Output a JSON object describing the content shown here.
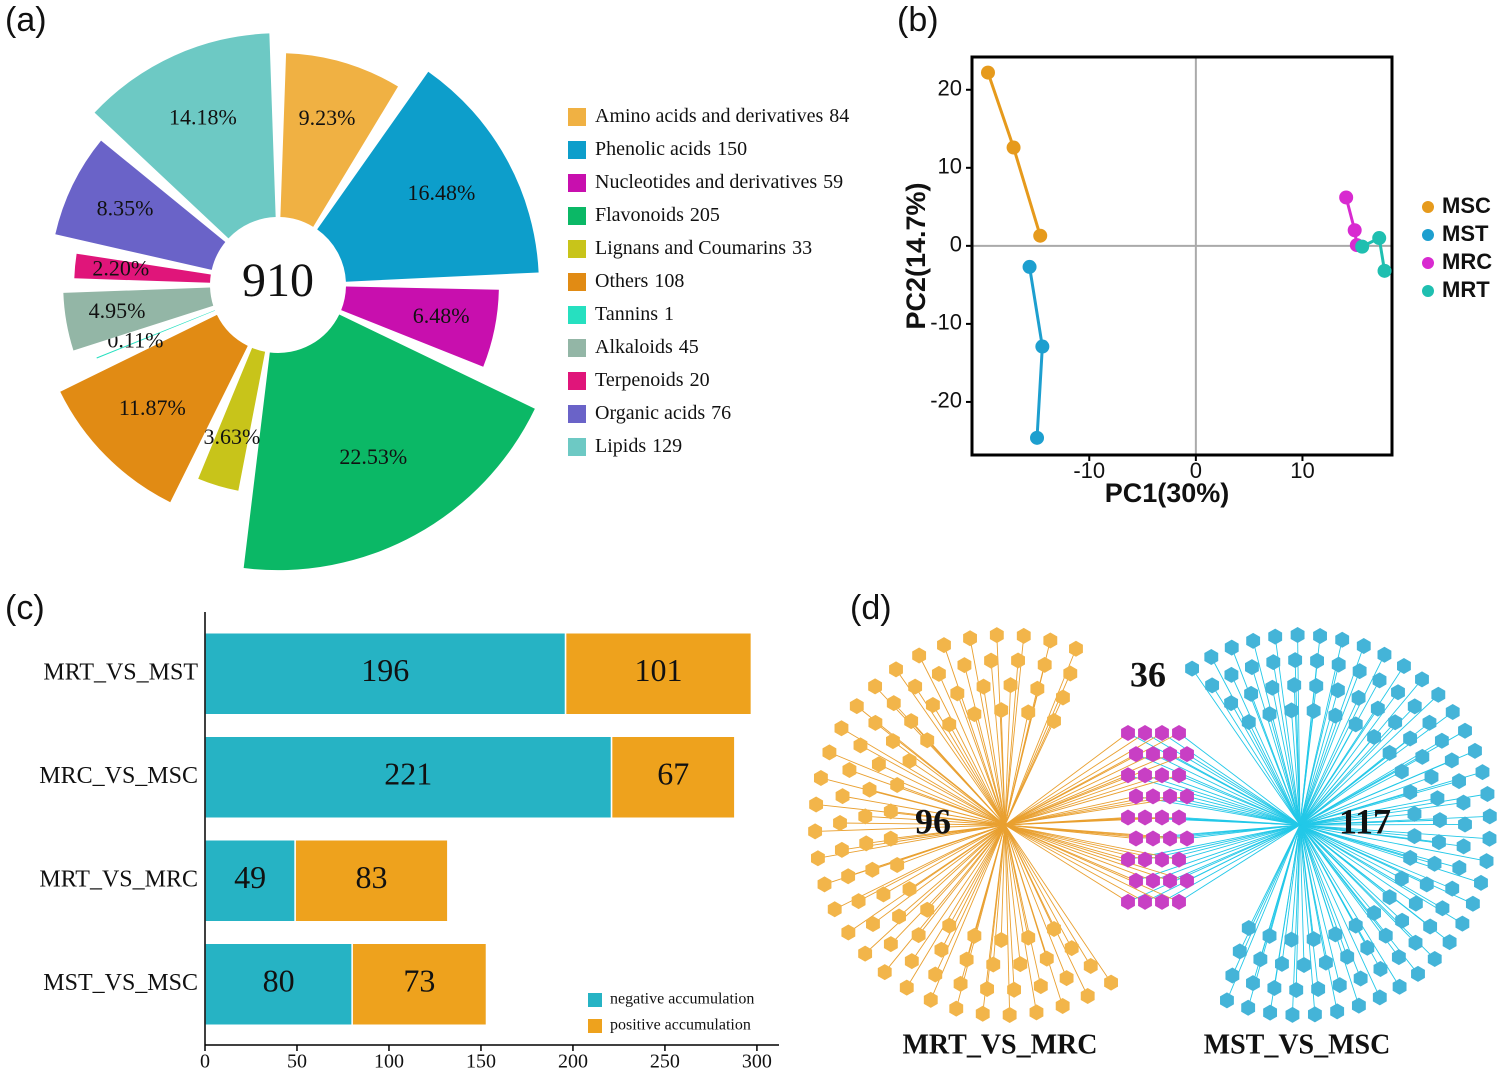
{
  "chart_data": [
    {
      "type": "pie",
      "label": "(a)",
      "total": 910,
      "categories": [
        "Amino acids and derivatives",
        "Phenolic acids",
        "Nucleotides and derivatives",
        "Flavonoids",
        "Lignans and Coumarins",
        "Others",
        "Tannins",
        "Alkaloids",
        "Terpenoids",
        "Organic acids",
        "Lipids"
      ],
      "counts": [
        84,
        150,
        59,
        205,
        33,
        108,
        1,
        45,
        20,
        76,
        129
      ],
      "values": [
        9.23,
        16.48,
        6.48,
        22.53,
        3.63,
        11.87,
        0.11,
        4.95,
        2.2,
        8.35,
        14.18
      ],
      "value_labels": [
        "9.23%",
        "16.48%",
        "6.48%",
        "22.53%",
        "3.63%",
        "11.87%",
        "0.11%",
        "4.95%",
        "2.20%",
        "8.35%",
        "14.18%"
      ],
      "colors": [
        "#f0b143",
        "#0d9ecb",
        "#c80fae",
        "#0bb866",
        "#c8c41a",
        "#e18b14",
        "#26e0c0",
        "#93b6a6",
        "#e0157a",
        "#6a63c8",
        "#6dc9c4"
      ],
      "legend": "right"
    },
    {
      "type": "scatter",
      "label": "(b)",
      "xlabel": "PC1(30%)",
      "ylabel": "PC2(14.7%)",
      "xlim": [
        -21,
        18.4
      ],
      "ylim": [
        -26.8,
        24.2
      ],
      "xticks": [
        -10,
        0,
        10
      ],
      "yticks": [
        -20,
        -10,
        0,
        10,
        20
      ],
      "zero_lines": true,
      "legend": "right",
      "series": [
        {
          "name": "MSC",
          "color": "#e69a1c",
          "x": [
            -19.5,
            -17.1,
            -14.6
          ],
          "y": [
            22.2,
            12.6,
            1.3
          ]
        },
        {
          "name": "MST",
          "color": "#1d9fcf",
          "x": [
            -15.6,
            -14.4,
            -14.9
          ],
          "y": [
            -2.7,
            -12.9,
            -24.6
          ]
        },
        {
          "name": "MRC",
          "color": "#d82ad0",
          "x": [
            14.1,
            14.9,
            15.1
          ],
          "y": [
            6.2,
            2.0,
            0.1
          ]
        },
        {
          "name": "MRT",
          "color": "#1fbfb0",
          "x": [
            15.6,
            17.2,
            17.7
          ],
          "y": [
            -0.1,
            1.0,
            -3.2
          ]
        }
      ]
    },
    {
      "type": "bar",
      "label": "(c)",
      "orientation": "horizontal",
      "stacked": true,
      "categories": [
        "MRT_VS_MST",
        "MRC_VS_MSC",
        "MRT_VS_MRC",
        "MST_VS_MSC"
      ],
      "xlim": [
        0,
        312
      ],
      "xticks": [
        0,
        50,
        100,
        150,
        200,
        250,
        300
      ],
      "legend": "lower right",
      "series": [
        {
          "name": "negative accumulation",
          "color": "#26b3c4",
          "values": [
            196,
            221,
            49,
            80
          ]
        },
        {
          "name": "positive accumulation",
          "color": "#eea21d",
          "values": [
            101,
            67,
            83,
            73
          ]
        }
      ]
    },
    {
      "type": "network",
      "label": "(d)",
      "groups": [
        {
          "name": "MRT_VS_MRC",
          "count": 96,
          "color": "#f2b54a",
          "edge_color": "#e9a030"
        },
        {
          "name": "MST_VS_MSC",
          "count": 117,
          "color": "#44b4d8",
          "edge_color": "#22c8e8"
        }
      ],
      "shared": {
        "count": 36,
        "color": "#c83fc4"
      }
    }
  ]
}
